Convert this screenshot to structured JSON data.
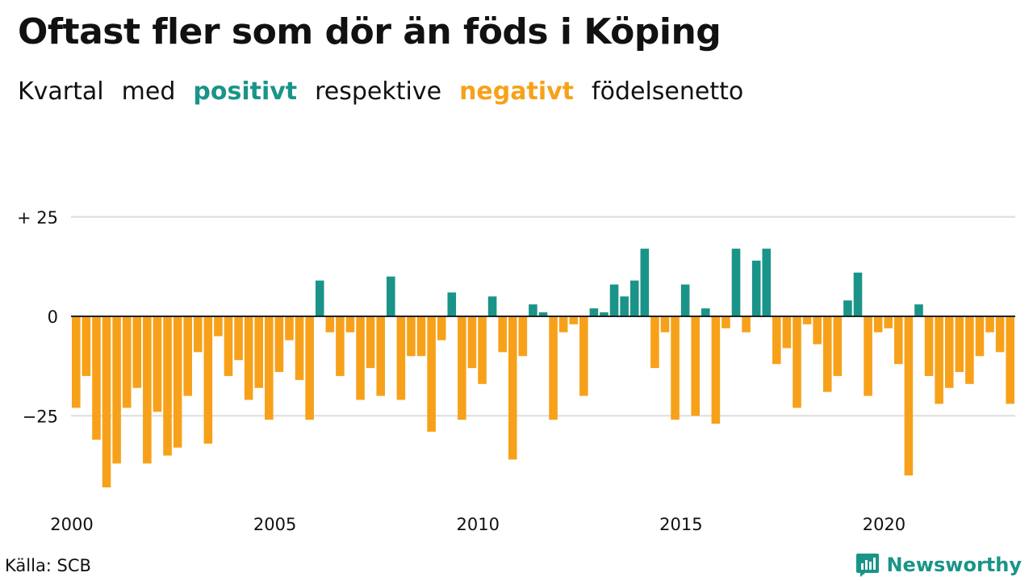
{
  "title": "Oftast fler som dör än föds i Köping",
  "subtitle": {
    "w1": "Kvartal",
    "w2": "med",
    "positive": "positivt",
    "w3": "respektive",
    "negative": "negativt",
    "w4": "födelsenetto"
  },
  "colors": {
    "positive": "#1a9488",
    "negative": "#f7a11a",
    "grid": "#dddddd",
    "axis": "#222222"
  },
  "source": "Källa: SCB",
  "brand": {
    "name": "Newsworthy",
    "icon": "newsworthy-logo-icon"
  },
  "chart_data": {
    "type": "bar",
    "title": "Oftast fler som dör än föds i Köping",
    "xlabel": "",
    "ylabel": "",
    "ylim": [
      -45,
      25
    ],
    "y_ticks": [
      25,
      0,
      -25
    ],
    "y_tick_labels": [
      "+ 25",
      "0",
      "−25"
    ],
    "x_tick_labels": [
      "2000",
      "2005",
      "2010",
      "2015",
      "2020"
    ],
    "grid": true,
    "first_quarter": "2000 Q1",
    "values": [
      -23,
      -15,
      -31,
      -43,
      -37,
      -23,
      -18,
      -37,
      -24,
      -35,
      -33,
      -20,
      -9,
      -32,
      -5,
      -15,
      -11,
      -21,
      -18,
      -26,
      -14,
      -6,
      -16,
      -26,
      9,
      -4,
      -15,
      -4,
      -21,
      -13,
      -20,
      10,
      -21,
      -10,
      -10,
      -29,
      -6,
      6,
      -26,
      -13,
      -17,
      5,
      -9,
      -36,
      -10,
      3,
      1,
      -26,
      -4,
      -2,
      -20,
      2,
      1,
      8,
      5,
      9,
      17,
      -13,
      -4,
      -26,
      8,
      -25,
      2,
      -27,
      -3,
      17,
      -4,
      14,
      17,
      -12,
      -8,
      -23,
      -2,
      -7,
      -19,
      -15,
      4,
      11,
      -20,
      -4,
      -3,
      -12,
      -40,
      3,
      -15,
      -22,
      -18,
      -14,
      -17,
      -10,
      -4,
      -9,
      -22
    ]
  }
}
